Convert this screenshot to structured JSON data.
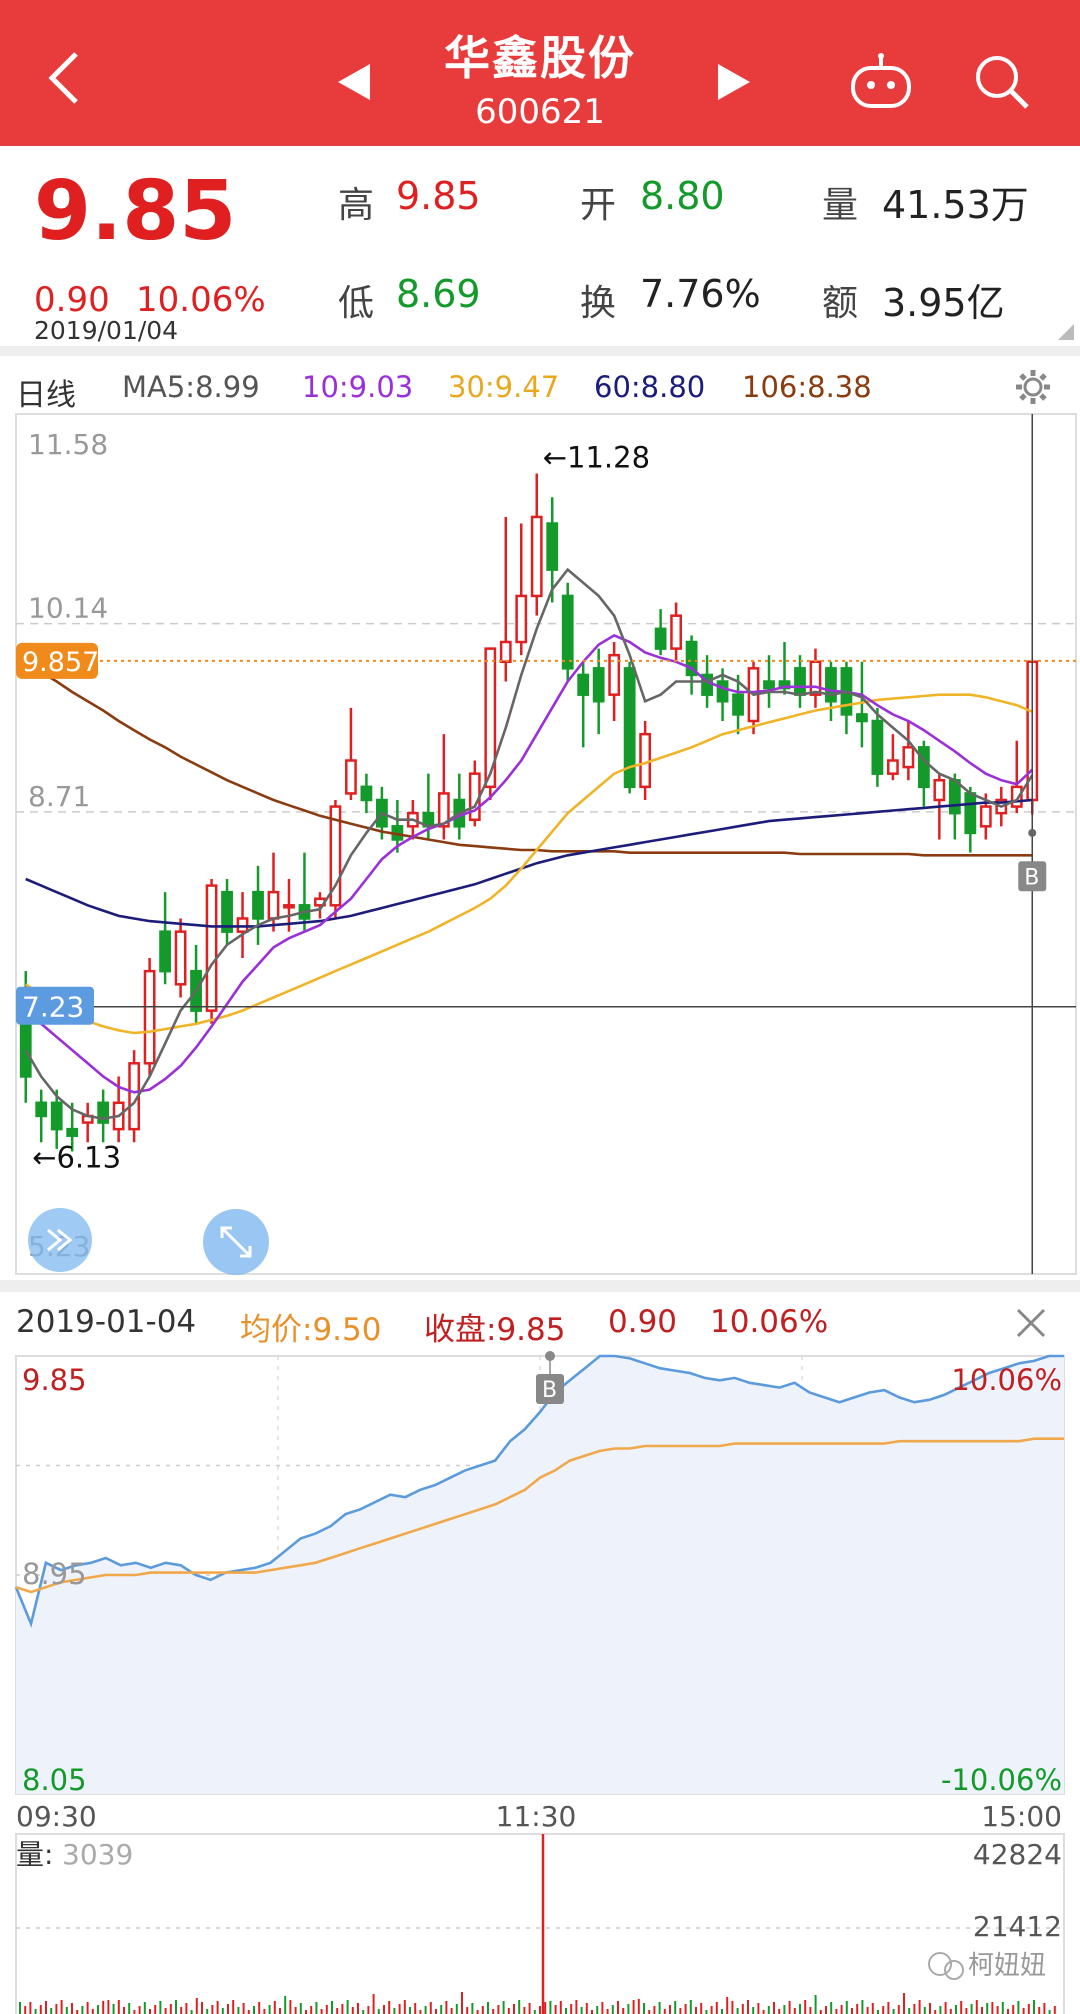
{
  "header": {
    "title": "华鑫股份",
    "code": "600621",
    "back_icon": "chevron-left-icon",
    "prev_icon": "triangle-left-icon",
    "next_icon": "triangle-right-icon",
    "robot_icon": "robot-icon",
    "search_icon": "search-icon"
  },
  "quote": {
    "price": "9.85",
    "change": "0.90",
    "change_pct": "10.06%",
    "date": "2019/01/04",
    "high_label": "高",
    "high": "9.85",
    "open_label": "开",
    "open": "8.80",
    "volume_label": "量",
    "volume": "41.53万",
    "low_label": "低",
    "low": "8.69",
    "turnover_label": "换",
    "turnover": "7.76%",
    "amount_label": "额",
    "amount": "3.95亿"
  },
  "ma_bar": {
    "period": "日线",
    "ma5": "MA5:8.99",
    "ma10": "10:9.03",
    "ma30": "30:9.47",
    "ma60": "60:8.80",
    "ma106": "106:8.38",
    "settings_icon": "gear-icon"
  },
  "colors": {
    "red": "#e02020",
    "green": "#139a2a",
    "ma5": "#666666",
    "ma10": "#9b30d9",
    "ma30": "#f0b428",
    "ma60": "#1c1c7a",
    "ma106": "#8a3c10",
    "accent": "#e83c3c"
  },
  "kline": {
    "y_labels": [
      "11.58",
      "10.14",
      "8.71",
      "5.23"
    ],
    "high_marker": "←11.28",
    "low_marker": "←6.13",
    "price_tag": "9.857",
    "cross_tag": "7.23",
    "b_marker": "B",
    "ylim": [
      5.23,
      11.58
    ],
    "candles": [
      {
        "o": 7.3,
        "c": 6.7,
        "h": 7.5,
        "l": 6.5
      },
      {
        "o": 6.5,
        "c": 6.4,
        "h": 6.6,
        "l": 6.2
      },
      {
        "o": 6.5,
        "c": 6.3,
        "h": 6.6,
        "l": 6.15
      },
      {
        "o": 6.3,
        "c": 6.25,
        "h": 6.5,
        "l": 6.13
      },
      {
        "o": 6.35,
        "c": 6.4,
        "h": 6.5,
        "l": 6.2
      },
      {
        "o": 6.5,
        "c": 6.35,
        "h": 6.6,
        "l": 6.2
      },
      {
        "o": 6.3,
        "c": 6.5,
        "h": 6.7,
        "l": 6.2
      },
      {
        "o": 6.3,
        "c": 6.8,
        "h": 6.9,
        "l": 6.2
      },
      {
        "o": 6.8,
        "c": 7.5,
        "h": 7.6,
        "l": 6.7
      },
      {
        "o": 7.8,
        "c": 7.5,
        "h": 8.1,
        "l": 7.4
      },
      {
        "o": 7.4,
        "c": 7.8,
        "h": 7.9,
        "l": 7.3
      },
      {
        "o": 7.5,
        "c": 7.2,
        "h": 7.7,
        "l": 7.1
      },
      {
        "o": 7.2,
        "c": 8.15,
        "h": 8.2,
        "l": 7.1
      },
      {
        "o": 8.1,
        "c": 7.8,
        "h": 8.2,
        "l": 7.7
      },
      {
        "o": 7.8,
        "c": 7.9,
        "h": 8.1,
        "l": 7.6
      },
      {
        "o": 8.1,
        "c": 7.9,
        "h": 8.3,
        "l": 7.7
      },
      {
        "o": 7.9,
        "c": 8.1,
        "h": 8.4,
        "l": 7.8
      },
      {
        "o": 8.0,
        "c": 8.0,
        "h": 8.2,
        "l": 7.8
      },
      {
        "o": 8.0,
        "c": 7.9,
        "h": 8.4,
        "l": 7.8
      },
      {
        "o": 8.0,
        "c": 8.05,
        "h": 8.1,
        "l": 7.9
      },
      {
        "o": 8.0,
        "c": 8.75,
        "h": 8.8,
        "l": 7.9
      },
      {
        "o": 8.85,
        "c": 9.1,
        "h": 9.5,
        "l": 8.8
      },
      {
        "o": 8.9,
        "c": 8.8,
        "h": 9.0,
        "l": 8.7
      },
      {
        "o": 8.8,
        "c": 8.6,
        "h": 8.9,
        "l": 8.5
      },
      {
        "o": 8.6,
        "c": 8.5,
        "h": 8.8,
        "l": 8.4
      },
      {
        "o": 8.6,
        "c": 8.7,
        "h": 8.8,
        "l": 8.5
      },
      {
        "o": 8.7,
        "c": 8.6,
        "h": 9.0,
        "l": 8.5
      },
      {
        "o": 8.6,
        "c": 8.85,
        "h": 9.3,
        "l": 8.5
      },
      {
        "o": 8.8,
        "c": 8.6,
        "h": 9.0,
        "l": 8.5
      },
      {
        "o": 8.65,
        "c": 9.0,
        "h": 9.1,
        "l": 8.6
      },
      {
        "o": 8.9,
        "c": 9.95,
        "h": 9.95,
        "l": 8.8
      },
      {
        "o": 9.85,
        "c": 10.0,
        "h": 10.95,
        "l": 9.7
      },
      {
        "o": 10.0,
        "c": 10.35,
        "h": 10.9,
        "l": 9.9
      },
      {
        "o": 10.35,
        "c": 10.95,
        "h": 11.28,
        "l": 10.2
      },
      {
        "o": 10.9,
        "c": 10.55,
        "h": 11.1,
        "l": 10.3
      },
      {
        "o": 10.35,
        "c": 9.8,
        "h": 10.45,
        "l": 9.7
      },
      {
        "o": 9.75,
        "c": 9.6,
        "h": 9.85,
        "l": 9.2
      },
      {
        "o": 9.8,
        "c": 9.55,
        "h": 9.95,
        "l": 9.3
      },
      {
        "o": 9.6,
        "c": 9.9,
        "h": 10.0,
        "l": 9.4
      },
      {
        "o": 9.8,
        "c": 8.9,
        "h": 9.85,
        "l": 8.85
      },
      {
        "o": 8.9,
        "c": 9.3,
        "h": 9.4,
        "l": 8.8
      },
      {
        "o": 10.1,
        "c": 9.95,
        "h": 10.25,
        "l": 9.9
      },
      {
        "o": 9.95,
        "c": 10.2,
        "h": 10.3,
        "l": 9.85
      },
      {
        "o": 10.0,
        "c": 9.75,
        "h": 10.05,
        "l": 9.6
      },
      {
        "o": 9.75,
        "c": 9.6,
        "h": 9.9,
        "l": 9.5
      },
      {
        "o": 9.7,
        "c": 9.55,
        "h": 9.8,
        "l": 9.4
      },
      {
        "o": 9.6,
        "c": 9.45,
        "h": 9.75,
        "l": 9.3
      },
      {
        "o": 9.4,
        "c": 9.8,
        "h": 9.85,
        "l": 9.3
      },
      {
        "o": 9.7,
        "c": 9.65,
        "h": 9.9,
        "l": 9.5
      },
      {
        "o": 9.7,
        "c": 9.65,
        "h": 10.0,
        "l": 9.6
      },
      {
        "o": 9.8,
        "c": 9.6,
        "h": 9.9,
        "l": 9.5
      },
      {
        "o": 9.6,
        "c": 9.85,
        "h": 9.95,
        "l": 9.5
      },
      {
        "o": 9.8,
        "c": 9.55,
        "h": 9.85,
        "l": 9.4
      },
      {
        "o": 9.8,
        "c": 9.45,
        "h": 9.85,
        "l": 9.3
      },
      {
        "o": 9.45,
        "c": 9.4,
        "h": 9.85,
        "l": 9.2
      },
      {
        "o": 9.4,
        "c": 9.0,
        "h": 9.5,
        "l": 8.9
      },
      {
        "o": 9.0,
        "c": 9.1,
        "h": 9.3,
        "l": 8.95
      },
      {
        "o": 9.05,
        "c": 9.2,
        "h": 9.4,
        "l": 8.95
      },
      {
        "o": 9.2,
        "c": 8.9,
        "h": 9.25,
        "l": 8.75
      },
      {
        "o": 8.8,
        "c": 8.95,
        "h": 9.0,
        "l": 8.5
      },
      {
        "o": 8.95,
        "c": 8.7,
        "h": 9.0,
        "l": 8.5
      },
      {
        "o": 8.85,
        "c": 8.55,
        "h": 8.9,
        "l": 8.4
      },
      {
        "o": 8.6,
        "c": 8.75,
        "h": 8.85,
        "l": 8.5
      },
      {
        "o": 8.7,
        "c": 8.8,
        "h": 8.9,
        "l": 8.6
      },
      {
        "o": 8.75,
        "c": 8.9,
        "h": 9.25,
        "l": 8.7
      },
      {
        "o": 8.8,
        "c": 9.85,
        "h": 9.85,
        "l": 8.69
      }
    ],
    "ma5": [
      6.9,
      6.7,
      6.55,
      6.45,
      6.4,
      6.38,
      6.4,
      6.5,
      6.7,
      6.95,
      7.2,
      7.35,
      7.55,
      7.7,
      7.78,
      7.85,
      7.9,
      7.92,
      7.95,
      7.97,
      8.15,
      8.38,
      8.55,
      8.7,
      8.65,
      8.65,
      8.6,
      8.62,
      8.7,
      8.75,
      9.0,
      9.35,
      9.75,
      10.1,
      10.4,
      10.55,
      10.45,
      10.35,
      10.2,
      9.9,
      9.55,
      9.6,
      9.7,
      9.7,
      9.7,
      9.75,
      9.7,
      9.6,
      9.62,
      9.62,
      9.6,
      9.62,
      9.6,
      9.62,
      9.58,
      9.45,
      9.35,
      9.25,
      9.1,
      9.0,
      8.95,
      8.85,
      8.8,
      8.75,
      8.8,
      8.99
    ],
    "ma10": [
      7.2,
      7.1,
      7.0,
      6.9,
      6.8,
      6.7,
      6.62,
      6.58,
      6.6,
      6.68,
      6.78,
      6.92,
      7.08,
      7.25,
      7.42,
      7.55,
      7.68,
      7.75,
      7.8,
      7.85,
      7.95,
      8.05,
      8.2,
      8.35,
      8.45,
      8.52,
      8.58,
      8.62,
      8.68,
      8.72,
      8.82,
      8.95,
      9.1,
      9.3,
      9.5,
      9.7,
      9.85,
      9.98,
      10.05,
      10.0,
      9.92,
      9.88,
      9.85,
      9.8,
      9.7,
      9.65,
      9.62,
      9.62,
      9.63,
      9.66,
      9.66,
      9.66,
      9.63,
      9.62,
      9.6,
      9.52,
      9.45,
      9.4,
      9.33,
      9.25,
      9.17,
      9.08,
      9.0,
      8.95,
      8.92,
      9.03
    ],
    "ma30": [
      7.4,
      7.32,
      7.25,
      7.18,
      7.12,
      7.08,
      7.05,
      7.03,
      7.04,
      7.06,
      7.08,
      7.1,
      7.13,
      7.16,
      7.2,
      7.25,
      7.3,
      7.35,
      7.4,
      7.45,
      7.5,
      7.55,
      7.6,
      7.65,
      7.7,
      7.75,
      7.8,
      7.86,
      7.92,
      7.98,
      8.05,
      8.15,
      8.28,
      8.42,
      8.56,
      8.7,
      8.8,
      8.9,
      9.0,
      9.05,
      9.08,
      9.12,
      9.16,
      9.2,
      9.25,
      9.3,
      9.33,
      9.36,
      9.39,
      9.42,
      9.45,
      9.48,
      9.5,
      9.52,
      9.54,
      9.56,
      9.57,
      9.58,
      9.59,
      9.6,
      9.6,
      9.6,
      9.58,
      9.55,
      9.52,
      9.47
    ],
    "ma60": [
      8.2,
      8.15,
      8.1,
      8.05,
      8.0,
      7.96,
      7.92,
      7.9,
      7.88,
      7.87,
      7.86,
      7.85,
      7.84,
      7.84,
      7.84,
      7.84,
      7.85,
      7.86,
      7.87,
      7.88,
      7.9,
      7.92,
      7.95,
      7.98,
      8.01,
      8.04,
      8.07,
      8.1,
      8.13,
      8.16,
      8.2,
      8.24,
      8.28,
      8.32,
      8.35,
      8.38,
      8.4,
      8.42,
      8.44,
      8.46,
      8.48,
      8.5,
      8.52,
      8.54,
      8.56,
      8.58,
      8.6,
      8.62,
      8.64,
      8.65,
      8.66,
      8.67,
      8.68,
      8.69,
      8.7,
      8.71,
      8.72,
      8.73,
      8.74,
      8.75,
      8.76,
      8.77,
      8.78,
      8.78,
      8.79,
      8.8
    ],
    "ma106": [
      9.85,
      9.77,
      9.7,
      9.62,
      9.55,
      9.48,
      9.4,
      9.33,
      9.26,
      9.2,
      9.13,
      9.07,
      9.01,
      8.95,
      8.9,
      8.85,
      8.8,
      8.76,
      8.72,
      8.68,
      8.65,
      8.62,
      8.59,
      8.56,
      8.54,
      8.52,
      8.5,
      8.48,
      8.46,
      8.45,
      8.44,
      8.43,
      8.42,
      8.42,
      8.41,
      8.41,
      8.41,
      8.41,
      8.41,
      8.4,
      8.4,
      8.4,
      8.4,
      8.4,
      8.4,
      8.4,
      8.4,
      8.4,
      8.4,
      8.4,
      8.39,
      8.39,
      8.39,
      8.39,
      8.39,
      8.39,
      8.39,
      8.39,
      8.38,
      8.38,
      8.38,
      8.38,
      8.38,
      8.38,
      8.38,
      8.38
    ]
  },
  "intraday_info": {
    "date": "2019-01-04",
    "avg_label": "均价:9.50",
    "close_label": "收盘:9.85",
    "change": "0.90",
    "change_pct": "10.06%",
    "close_icon": "close-icon"
  },
  "intraday": {
    "y_top": "9.85",
    "y_mid": "8.95",
    "y_bottom": "8.05",
    "pct_top": "10.06%",
    "pct_bottom": "-10.06%",
    "time_start": "09:30",
    "time_mid": "11:30",
    "time_end": "15:00",
    "b_marker": "B",
    "ylim": [
      8.05,
      9.85
    ],
    "price": [
      8.9,
      8.75,
      9.0,
      8.97,
      8.99,
      9.0,
      9.02,
      8.99,
      9.0,
      8.98,
      9.0,
      8.99,
      8.95,
      8.93,
      8.96,
      8.97,
      8.98,
      9.0,
      9.05,
      9.1,
      9.12,
      9.15,
      9.2,
      9.22,
      9.25,
      9.28,
      9.27,
      9.3,
      9.32,
      9.35,
      9.38,
      9.4,
      9.42,
      9.5,
      9.55,
      9.62,
      9.7,
      9.75,
      9.8,
      9.85,
      9.85,
      9.84,
      9.82,
      9.8,
      9.79,
      9.78,
      9.76,
      9.75,
      9.76,
      9.74,
      9.73,
      9.72,
      9.74,
      9.7,
      9.68,
      9.66,
      9.68,
      9.7,
      9.71,
      9.68,
      9.66,
      9.67,
      9.69,
      9.72,
      9.75,
      9.78,
      9.8,
      9.82,
      9.83,
      9.85,
      9.85
    ],
    "avg": [
      8.9,
      8.88,
      8.9,
      8.92,
      8.93,
      8.94,
      8.95,
      8.95,
      8.95,
      8.96,
      8.96,
      8.96,
      8.96,
      8.96,
      8.96,
      8.96,
      8.96,
      8.97,
      8.98,
      8.99,
      9.0,
      9.02,
      9.04,
      9.06,
      9.08,
      9.1,
      9.12,
      9.14,
      9.16,
      9.18,
      9.2,
      9.22,
      9.24,
      9.27,
      9.3,
      9.35,
      9.38,
      9.42,
      9.44,
      9.46,
      9.47,
      9.47,
      9.48,
      9.48,
      9.48,
      9.48,
      9.48,
      9.48,
      9.49,
      9.49,
      9.49,
      9.49,
      9.49,
      9.49,
      9.49,
      9.49,
      9.49,
      9.49,
      9.49,
      9.5,
      9.5,
      9.5,
      9.5,
      9.5,
      9.5,
      9.5,
      9.5,
      9.5,
      9.51,
      9.51,
      9.51
    ],
    "volume_label": "量:",
    "volume_value": "3039",
    "vol_max_label": "42824",
    "vol_mid_label": "21412",
    "watermark": "柯妞妞",
    "watermark_icon": "wechat-icon"
  }
}
